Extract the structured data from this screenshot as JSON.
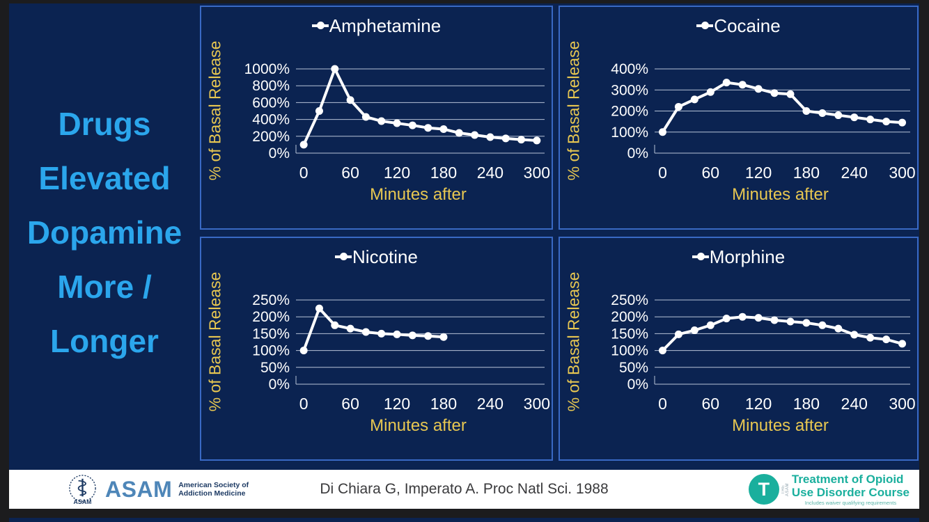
{
  "slide": {
    "title_lines": [
      "Drugs",
      "Elevated",
      "Dopamine",
      "More /",
      "Longer"
    ]
  },
  "chart_data": [
    {
      "type": "line",
      "name": "Amphetamine",
      "xlabel": "Minutes after",
      "ylabel": "% of Basal Release",
      "x_step": 20,
      "x_max": 300,
      "ylim": [
        0,
        1000
      ],
      "yticks": [
        1000,
        800,
        600,
        400,
        200,
        0
      ],
      "xticks": [
        0,
        60,
        120,
        180,
        240,
        300
      ],
      "x": [
        0,
        20,
        40,
        60,
        80,
        100,
        120,
        140,
        160,
        180,
        200,
        220,
        240,
        260,
        280,
        300
      ],
      "values": [
        100,
        500,
        1000,
        630,
        430,
        380,
        355,
        330,
        300,
        285,
        240,
        215,
        190,
        175,
        160,
        150
      ],
      "grid": "on",
      "legend_position": "top-center"
    },
    {
      "type": "line",
      "name": "Cocaine",
      "xlabel": "Minutes after",
      "ylabel": "% of Basal Release",
      "x_step": 20,
      "x_max": 300,
      "ylim": [
        0,
        400
      ],
      "yticks": [
        400,
        300,
        200,
        100,
        0
      ],
      "xticks": [
        0,
        60,
        120,
        180,
        240,
        300
      ],
      "x": [
        0,
        20,
        40,
        60,
        80,
        100,
        120,
        140,
        160,
        180,
        200,
        220,
        240,
        260,
        280,
        300
      ],
      "values": [
        100,
        220,
        255,
        290,
        335,
        325,
        305,
        285,
        280,
        200,
        190,
        180,
        170,
        160,
        150,
        145
      ],
      "grid": "on",
      "legend_position": "top-center"
    },
    {
      "type": "line",
      "name": "Nicotine",
      "xlabel": "Minutes after",
      "ylabel": "% of Basal Release",
      "x_step": 20,
      "x_max": 300,
      "ylim": [
        0,
        250
      ],
      "yticks": [
        250,
        200,
        150,
        100,
        50,
        0
      ],
      "xticks": [
        0,
        60,
        120,
        180,
        240,
        300
      ],
      "x": [
        0,
        20,
        40,
        60,
        80,
        100,
        120,
        140,
        160,
        180
      ],
      "values": [
        100,
        225,
        175,
        165,
        155,
        150,
        148,
        145,
        143,
        140
      ],
      "grid": "on",
      "legend_position": "top-center"
    },
    {
      "type": "line",
      "name": "Morphine",
      "xlabel": "Minutes after",
      "ylabel": "% of Basal Release",
      "x_step": 20,
      "x_max": 300,
      "ylim": [
        0,
        250
      ],
      "yticks": [
        250,
        200,
        150,
        100,
        50,
        0
      ],
      "xticks": [
        0,
        60,
        120,
        180,
        240,
        300
      ],
      "x": [
        0,
        20,
        40,
        60,
        80,
        100,
        120,
        140,
        160,
        180,
        200,
        220,
        240,
        260,
        280,
        300
      ],
      "values": [
        100,
        148,
        160,
        175,
        195,
        200,
        197,
        190,
        186,
        182,
        175,
        165,
        147,
        138,
        133,
        120
      ],
      "grid": "on",
      "legend_position": "top-center"
    }
  ],
  "footer": {
    "asam": {
      "acronym": "ASAM",
      "org_line1": "American Society of",
      "org_line2": "Addiction Medicine",
      "seal_text": "ASAM"
    },
    "citation": "Di Chiara G, Imperato A. Proc Natl Sci. 1988",
    "course": {
      "badge_letter": "T",
      "vertical_text": "THE ASAM",
      "line1": "Treatment of Opioid",
      "line2": "Use Disorder Course",
      "tagline": "Includes waiver qualifying requirements"
    }
  },
  "colors": {
    "slide_navy": "#0b2351",
    "panel_border": "#3969c4",
    "title_blue": "#2ba6ec",
    "axis_yellow": "#e8c751",
    "line_white": "#ffffff",
    "teal": "#1aaf9d",
    "asam_blue": "#4e86b8",
    "outer_bg": "#1c1c1e",
    "footer_bg": "#ffffff"
  }
}
